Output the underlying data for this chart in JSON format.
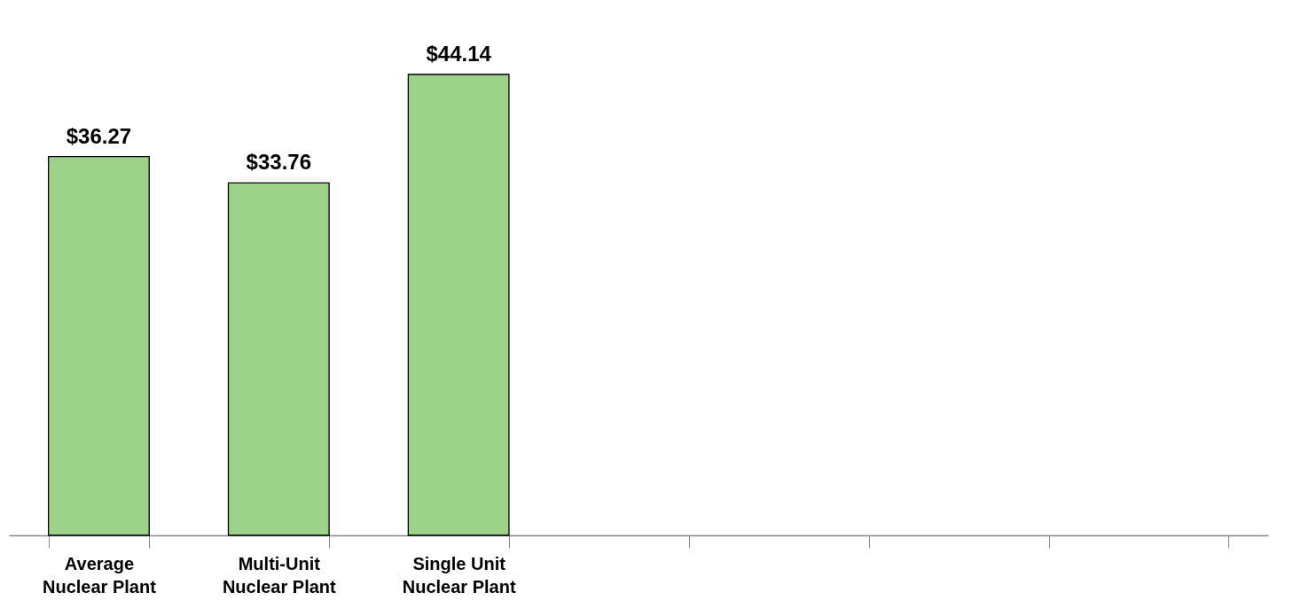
{
  "chart_data": {
    "type": "bar",
    "categories": [
      "Average Nuclear Plant",
      "Multi-Unit Nuclear Plant",
      "Single Unit Nuclear Plant",
      null,
      null,
      null,
      null
    ],
    "values": [
      36.27,
      33.76,
      44.14,
      null,
      null,
      null,
      null
    ],
    "value_labels": [
      "$36.27",
      "$33.76",
      "$44.14",
      null,
      null,
      null,
      null
    ],
    "color": "#9bd188"
  }
}
